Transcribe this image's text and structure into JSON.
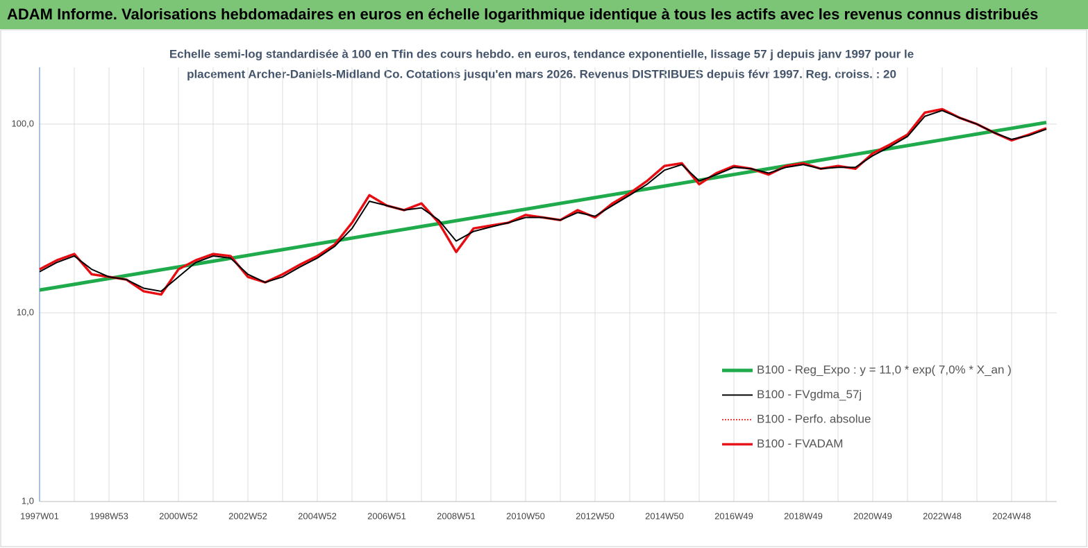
{
  "header": {
    "title": "ADAM Informe. Valorisations hebdomadaires en euros en échelle logarithmique identique à tous les actifs avec les revenus connus distribués"
  },
  "chart_data": {
    "type": "line",
    "subtitle": [
      "Echelle semi-log standardisée à 100 en Tfin des cours hebdo. en euros, tendance exponentielle, lissage 57 j depuis janv 1997 pour le",
      "placement Archer-Daniels-Midland Co. Cotations jusqu'en mars 2026. Revenus DISTRIBUES depuis févr 1997.  Reg. croiss. : 20"
    ],
    "categories": [
      "1997W01",
      null,
      null,
      null,
      "1998W53",
      null,
      null,
      null,
      "2000W52",
      null,
      null,
      null,
      "2002W52",
      null,
      null,
      null,
      "2004W52",
      null,
      null,
      null,
      "2006W51",
      null,
      null,
      null,
      "2008W51",
      null,
      null,
      null,
      "2010W50",
      null,
      null,
      null,
      "2012W50",
      null,
      null,
      null,
      "2014W50",
      null,
      null,
      null,
      "2016W49",
      null,
      null,
      null,
      "2018W49",
      null,
      null,
      null,
      "2020W49",
      null,
      null,
      null,
      "2022W48",
      null,
      null,
      null,
      "2024W48",
      null,
      null
    ],
    "log_scale": true,
    "ylim": [
      1,
      200
    ],
    "yticks": [
      {
        "value": 1,
        "label": "1,0"
      },
      {
        "value": 10,
        "label": "10,0"
      },
      {
        "value": 100,
        "label": "100,0"
      }
    ],
    "grid": true,
    "legend": "lower right",
    "series": [
      {
        "name": "B100 - Reg_Expo : y = 11,0 *  exp( 7,0% *  X_an )",
        "color": "#1faa4b",
        "line_width": 5,
        "dashed": false,
        "values": [
          13.2,
          13.67,
          14.16,
          14.67,
          15.2,
          15.75,
          16.31,
          16.9,
          17.5,
          18.13,
          18.78,
          19.45,
          20.15,
          20.87,
          21.62,
          22.4,
          23.2,
          24.03,
          24.9,
          25.79,
          26.72,
          27.67,
          28.67,
          29.69,
          30.76,
          31.86,
          33.0,
          34.19,
          35.41,
          36.68,
          38.0,
          39.36,
          40.78,
          42.24,
          43.75,
          45.32,
          46.95,
          48.64,
          50.38,
          52.19,
          54.06,
          56.0,
          58.01,
          60.09,
          62.25,
          64.48,
          66.8,
          69.19,
          71.68,
          74.25,
          76.91,
          79.67,
          82.53,
          85.49,
          88.56,
          91.74,
          95.03,
          98.44,
          101.97
        ]
      },
      {
        "name": "B100 - FVgdma_57j",
        "color": "#000000",
        "line_width": 2,
        "dashed": false,
        "values": [
          16.5,
          18.5,
          20,
          17,
          15.5,
          15,
          13.5,
          13,
          15.5,
          18.5,
          20,
          19.5,
          16,
          14.5,
          15.5,
          17.5,
          19.5,
          22.5,
          28,
          39,
          37,
          35,
          36,
          31,
          24,
          27,
          28.5,
          30,
          32,
          32,
          31,
          34,
          32.5,
          37,
          42,
          48,
          57,
          61,
          50,
          54,
          59,
          58,
          55,
          59,
          61,
          58,
          59,
          59,
          68,
          76,
          86,
          110,
          118,
          108,
          100,
          90,
          83,
          87,
          94
        ]
      },
      {
        "name": "B100 - Perfo. absolue",
        "color": "#e00000",
        "line_width": 1.5,
        "dashed": true,
        "values": [
          17,
          19,
          20.5,
          16,
          15.5,
          15,
          13,
          12.5,
          17,
          19,
          20.5,
          20,
          15.5,
          14.5,
          16,
          18,
          20,
          23,
          30,
          42,
          37,
          35,
          38,
          30,
          21,
          28,
          29,
          30,
          33,
          32,
          31,
          35,
          32,
          38,
          43,
          50,
          60,
          62,
          48,
          55,
          60,
          58,
          54,
          60,
          62,
          58,
          60,
          58,
          70,
          78,
          88,
          115,
          120,
          108,
          100,
          90,
          82,
          88,
          95
        ]
      },
      {
        "name": "B100 - FVADAM",
        "color": "#e8141b",
        "line_width": 3.5,
        "dashed": false,
        "values": [
          17,
          19,
          20.5,
          16,
          15.5,
          15,
          13,
          12.5,
          17,
          19,
          20.5,
          20,
          15.5,
          14.5,
          16,
          18,
          20,
          23,
          30,
          42,
          37,
          35,
          38,
          30,
          21,
          28,
          29,
          30,
          33,
          32,
          31,
          35,
          32,
          38,
          43,
          50,
          60,
          62,
          48,
          55,
          60,
          58,
          54,
          60,
          62,
          58,
          60,
          58,
          70,
          78,
          88,
          115,
          120,
          108,
          100,
          90,
          82,
          88,
          95
        ]
      }
    ]
  }
}
